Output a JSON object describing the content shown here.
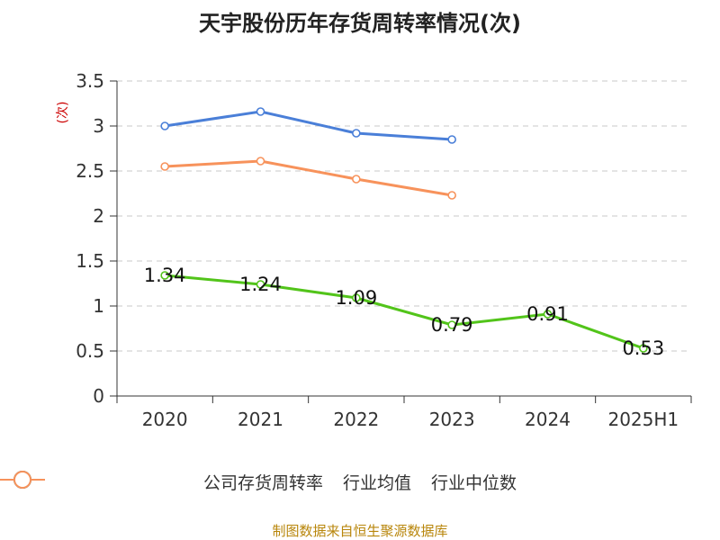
{
  "chart_data": {
    "type": "line",
    "title": "天宇股份历年存货周转率情况(次)",
    "ylabel": "(次)",
    "xlabel": "",
    "categories": [
      "2020",
      "2021",
      "2022",
      "2023",
      "2024",
      "2025H1"
    ],
    "ylim": [
      0,
      3.5
    ],
    "yticks": [
      "0",
      "0.5",
      "1",
      "1.5",
      "2",
      "2.5",
      "3",
      "3.5"
    ],
    "grid": true,
    "legend_position": "bottom",
    "series": [
      {
        "name": "公司存货周转率",
        "color": "#52c41a",
        "values": [
          1.34,
          1.24,
          1.09,
          0.79,
          0.91,
          0.53
        ],
        "labels": [
          "1.34",
          "1.24",
          "1.09",
          "0.79",
          "0.91",
          "0.53"
        ]
      },
      {
        "name": "行业均值",
        "color": "#4a7fd8",
        "values": [
          3.0,
          3.16,
          2.92,
          2.85,
          null,
          null
        ]
      },
      {
        "name": "行业中位数",
        "color": "#f7925b",
        "values": [
          2.55,
          2.61,
          2.41,
          2.23,
          null,
          null
        ]
      }
    ]
  },
  "source_text": "制图数据来自恒生聚源数据库"
}
